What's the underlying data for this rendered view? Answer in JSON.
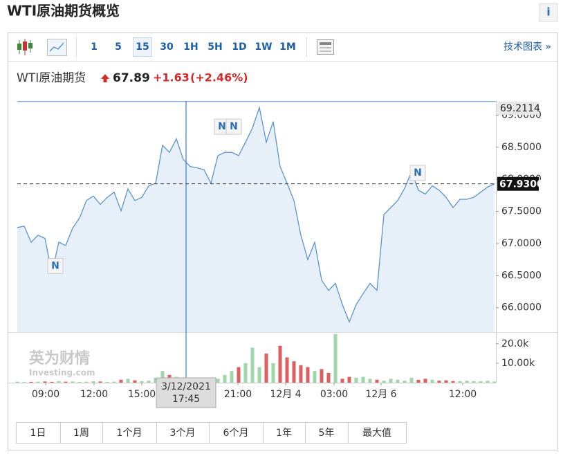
{
  "header": {
    "title": "WTI原油期货概览",
    "info": "i"
  },
  "toolbar": {
    "intervals": [
      "1",
      "5",
      "15",
      "30",
      "1H",
      "5H",
      "1D",
      "1W",
      "1M"
    ],
    "active": "15",
    "link": "技术图表 »"
  },
  "quote": {
    "name": "WTI原油期货",
    "price": "67.89",
    "change": "+1.63",
    "change_pct": "(+2.46%)"
  },
  "chart_data": {
    "type": "area",
    "values": [
      67.25,
      67.27,
      67.02,
      67.13,
      67.08,
      66.54,
      67.02,
      66.97,
      67.24,
      67.4,
      67.67,
      67.74,
      67.61,
      67.72,
      67.8,
      67.51,
      67.85,
      67.67,
      67.72,
      67.9,
      67.94,
      68.53,
      68.42,
      68.63,
      68.31,
      68.2,
      68.18,
      68.15,
      67.94,
      68.37,
      68.42,
      68.42,
      68.37,
      68.58,
      68.8,
      69.12,
      68.58,
      68.9,
      68.2,
      67.94,
      67.67,
      67.13,
      66.75,
      67.02,
      66.43,
      66.27,
      66.38,
      66.05,
      65.78,
      66.05,
      66.22,
      66.38,
      66.27,
      67.45,
      67.56,
      67.67,
      67.86,
      68.12,
      67.83,
      67.77,
      67.9,
      67.83,
      67.72,
      67.56,
      67.69,
      67.69,
      67.72,
      67.8,
      67.88,
      67.93
    ],
    "xlim": [
      0,
      69
    ],
    "xticks": [
      {
        "value": 4.1,
        "label": "09:00"
      },
      {
        "value": 11.1,
        "label": "12:00"
      },
      {
        "value": 18,
        "label": "15:00"
      },
      {
        "value": 31.9,
        "label": "21:00"
      },
      {
        "value": 38.8,
        "label": "12月 4"
      },
      {
        "value": 45.8,
        "label": "03:00"
      },
      {
        "value": 52.6,
        "label": "12月 6"
      },
      {
        "value": 64.4,
        "label": "12:00"
      }
    ],
    "ylim": [
      65.62,
      69.22
    ],
    "yticks": [
      {
        "value": 66,
        "label": "66.0000"
      },
      {
        "value": 66.5,
        "label": "66.5000"
      },
      {
        "value": 67,
        "label": "67.0000"
      },
      {
        "value": 67.5,
        "label": "67.5000"
      },
      {
        "value": 68,
        "label": "68.0000"
      },
      {
        "value": 68.5,
        "label": "68.5000"
      },
      {
        "value": 69,
        "label": "69.0000"
      }
    ],
    "color": "#5b93cf",
    "fill": "#e7eff8",
    "high": {
      "value": 69.2114,
      "label": "69.2114"
    },
    "last": {
      "value": 67.93,
      "label": "67.9300"
    },
    "crosshair": {
      "x": 24.4,
      "date": "3/12/2021",
      "time": "17:45"
    },
    "volume": [
      500,
      300,
      400,
      500,
      600,
      400,
      800,
      500,
      600,
      400,
      500,
      700,
      600,
      400,
      500,
      1500,
      2000,
      1200,
      800,
      1000,
      2500,
      6000,
      4000,
      3000,
      1500,
      1000,
      800,
      600,
      1000,
      2000,
      4000,
      6000,
      8000,
      10000,
      18000,
      8000,
      15000,
      10000,
      19000,
      13000,
      11000,
      9000,
      8000,
      6000,
      7000,
      5000,
      25000,
      2000,
      3000,
      2500,
      3000,
      2000,
      1500,
      1000,
      2000,
      1500,
      1000,
      2500,
      1500,
      2000,
      1500,
      1000,
      1200,
      800,
      800,
      1000,
      800,
      700,
      1000,
      600
    ],
    "volume_ylim": [
      0,
      26000
    ],
    "volume_yticks": [
      {
        "value": 10000,
        "label": "10.00k"
      },
      {
        "value": 20000,
        "label": "20.0k"
      }
    ],
    "up_color": "#9fd6aa",
    "down_color": "#dd5f61",
    "news_markers": [
      "N",
      "N",
      "N",
      "N"
    ]
  },
  "watermark": {
    "brand": "英为财情",
    "site": "Investing.com"
  },
  "ranges": [
    "1日",
    "1周",
    "1个月",
    "3个月",
    "6个月",
    "1年",
    "5年",
    "最大值"
  ]
}
